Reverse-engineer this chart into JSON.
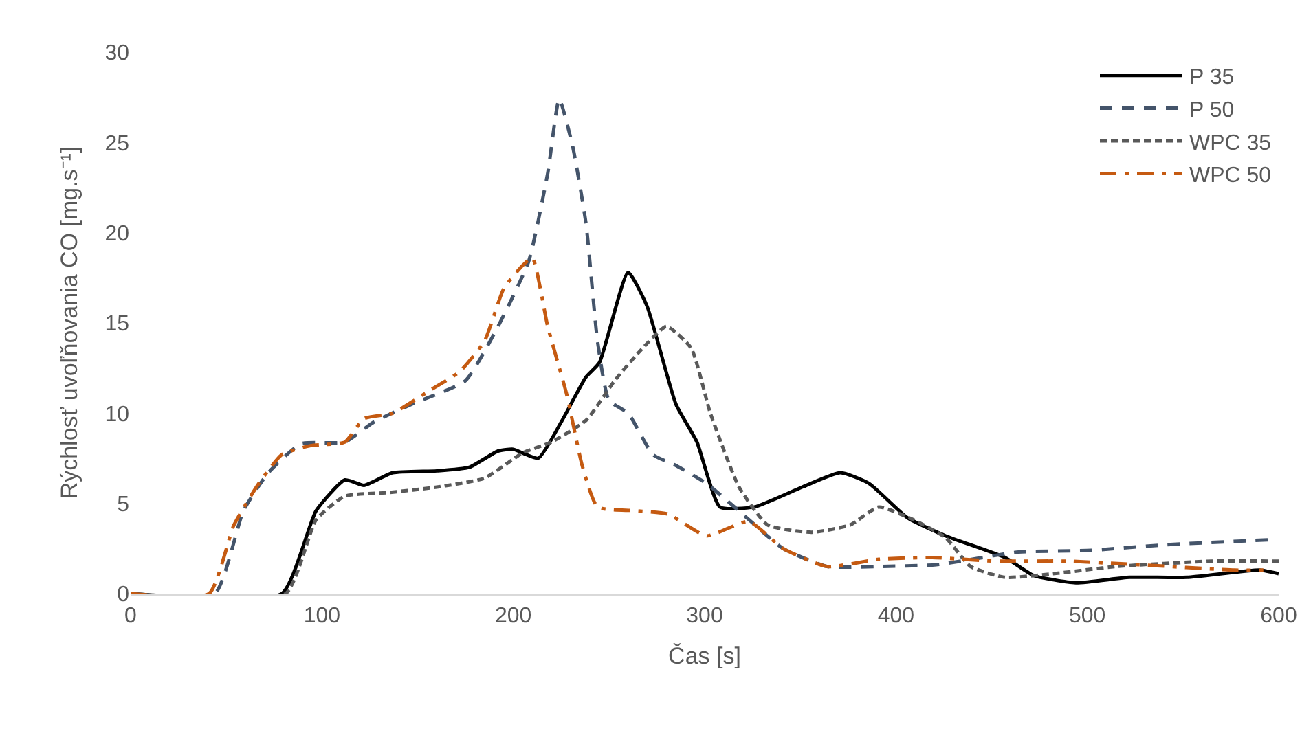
{
  "chart_data": {
    "type": "line",
    "xlabel": "Čas [s]",
    "ylabel": "Rýchlosť uvoľňovania CO [mg.s⁻¹]",
    "xlim": [
      0,
      600
    ],
    "ylim": [
      0,
      30
    ],
    "xticks": [
      0,
      100,
      200,
      300,
      400,
      500,
      600
    ],
    "yticks": [
      0,
      5,
      10,
      15,
      20,
      25,
      30
    ],
    "grid": false,
    "legend": "top right",
    "marker": "none",
    "series": [
      {
        "name": "P 35",
        "color": "#000000",
        "line_style": "solid",
        "x": [
          0,
          79,
          97,
          112,
          122,
          137,
          160,
          177,
          192,
          200,
          213,
          225,
          238,
          245,
          260,
          270,
          285,
          296,
          308,
          326,
          351,
          371,
          386,
          406,
          426,
          457,
          472,
          494,
          522,
          552,
          590,
          600
        ],
        "values": [
          0,
          0,
          4.6,
          6.3,
          6.0,
          6.7,
          6.8,
          7.0,
          7.9,
          8.0,
          7.5,
          9.5,
          12.0,
          12.8,
          17.8,
          15.9,
          10.5,
          8.4,
          4.8,
          4.8,
          5.9,
          6.7,
          6.1,
          4.2,
          3.2,
          2.0,
          1.0,
          0.6,
          0.9,
          0.9,
          1.3,
          1.1
        ]
      },
      {
        "name": "P 50",
        "color": "#44546a",
        "line_style": "dashed",
        "x": [
          0,
          44,
          59,
          72,
          89,
          112,
          127,
          147,
          175,
          192,
          208,
          218,
          224,
          231,
          238,
          244,
          250,
          260,
          273,
          285,
          301,
          321,
          341,
          364,
          389,
          421,
          464,
          502,
          540,
          598
        ],
        "values": [
          0,
          0,
          4.6,
          6.7,
          8.3,
          8.4,
          9.5,
          10.5,
          11.8,
          14.8,
          18.4,
          23.3,
          27.4,
          24.8,
          20.5,
          14.0,
          10.7,
          10.0,
          7.7,
          7.1,
          6.1,
          4.3,
          2.5,
          1.5,
          1.5,
          1.6,
          2.3,
          2.4,
          2.7,
          3.0
        ]
      },
      {
        "name": "WPC 35",
        "color": "#595959",
        "line_style": "dotted",
        "x": [
          0,
          81,
          97,
          112,
          135,
          160,
          185,
          205,
          220,
          238,
          253,
          265,
          280,
          293,
          303,
          318,
          333,
          356,
          376,
          391,
          409,
          426,
          439,
          457,
          482,
          515,
          565,
          600
        ],
        "values": [
          0,
          0,
          4.1,
          5.4,
          5.6,
          5.9,
          6.4,
          7.8,
          8.4,
          9.6,
          11.8,
          13.3,
          14.8,
          13.6,
          10.0,
          5.9,
          3.8,
          3.4,
          3.8,
          4.8,
          4.1,
          3.1,
          1.5,
          0.9,
          1.1,
          1.5,
          1.8,
          1.8
        ]
      },
      {
        "name": "WPC 50",
        "color": "#c55a11",
        "line_style": "dashdot",
        "x": [
          0,
          41,
          54,
          67,
          79,
          94,
          112,
          122,
          137,
          157,
          172,
          185,
          195,
          205,
          210,
          218,
          228,
          236,
          244,
          263,
          281,
          301,
          323,
          341,
          364,
          391,
          419,
          451,
          489,
          527,
          577,
          592
        ],
        "values": [
          0,
          0,
          3.8,
          6.1,
          7.7,
          8.2,
          8.4,
          9.7,
          10.0,
          11.3,
          12.3,
          14.0,
          16.9,
          18.2,
          18.6,
          14.8,
          11.0,
          7.1,
          4.8,
          4.6,
          4.4,
          3.2,
          4.0,
          2.5,
          1.5,
          1.9,
          2.0,
          1.8,
          1.8,
          1.6,
          1.3,
          1.3
        ]
      }
    ]
  }
}
